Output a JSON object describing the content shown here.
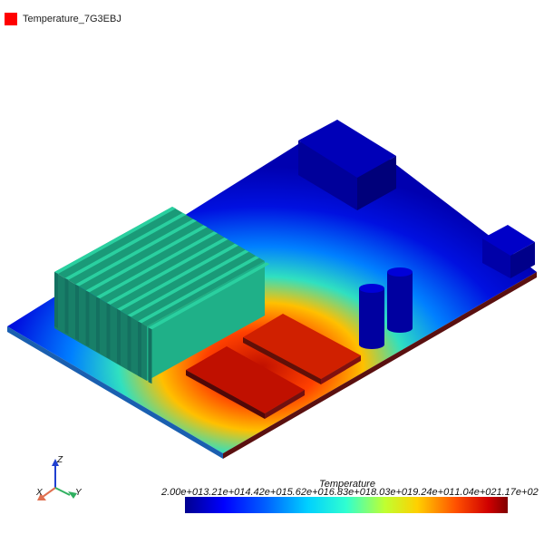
{
  "legend": {
    "label": "Temperature_7G3EBJ",
    "swatch_color": "#ff0000"
  },
  "colorbar": {
    "title": "Temperature",
    "ticks": [
      "2.00e+01",
      "3.21e+01",
      "4.42e+01",
      "5.62e+01",
      "6.83e+01",
      "8.03e+01",
      "9.24e+01",
      "1.04e+02",
      "1.17e+02"
    ]
  },
  "axes": {
    "x": "X",
    "y": "Y",
    "z": "Z"
  }
}
